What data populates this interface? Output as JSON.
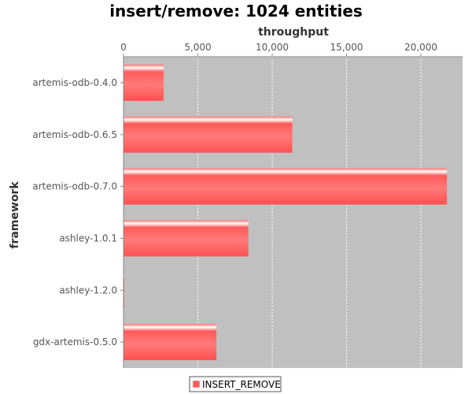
{
  "chart_data": {
    "type": "bar",
    "orientation": "horizontal",
    "title": "insert/remove: 1024 entities",
    "xlabel": "throughput",
    "ylabel": "framework",
    "categories": [
      "artemis-odb-0.4.0",
      "artemis-odb-0.6.5",
      "artemis-odb-0.7.0",
      "ashley-1.0.1",
      "ashley-1.2.0",
      "gdx-artemis-0.5.0"
    ],
    "series": [
      {
        "name": "INSERT_REMOVE",
        "values": [
          2700,
          11350,
          21750,
          8400,
          50,
          6250
        ]
      }
    ],
    "xlim": [
      0,
      22800
    ],
    "xticks": [
      0,
      5000,
      10000,
      15000,
      20000
    ],
    "xtick_labels": [
      "0",
      "5,000",
      "10,000",
      "15,000",
      "20,000"
    ],
    "x_axis_position": "top",
    "grid": true,
    "legend_position": "bottom",
    "colors": {
      "bar": "#ff5a5a",
      "bar_highlight": "#ffffff",
      "plot_background": "#c0c0c0",
      "gridline": "#ffffff"
    }
  }
}
